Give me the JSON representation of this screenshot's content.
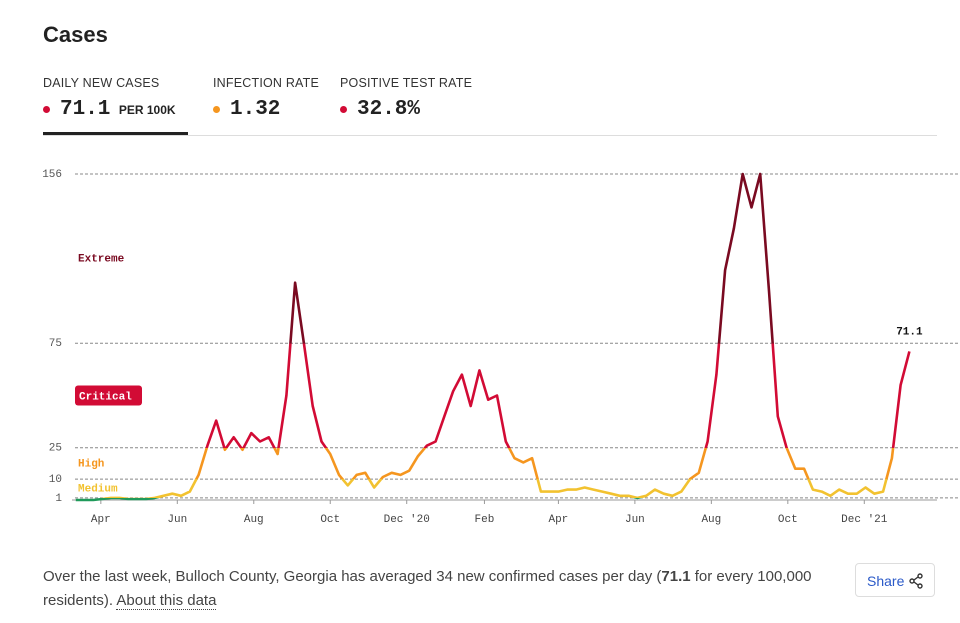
{
  "header": {
    "title": "Cases"
  },
  "tabs": [
    {
      "label": "DAILY NEW CASES",
      "value": "71.1",
      "unit": "PER 100K",
      "color": "#d20b35"
    },
    {
      "label": "INFECTION RATE",
      "value": "1.32",
      "color": "#f5961f"
    },
    {
      "label": "POSITIVE TEST RATE",
      "value": "32.8%",
      "color": "#d20b35"
    }
  ],
  "chart_data": {
    "type": "line",
    "x": [
      "2020-03-12",
      "2020-03-19",
      "2020-03-26",
      "2020-04-02",
      "2020-04-09",
      "2020-04-16",
      "2020-04-23",
      "2020-04-30",
      "2020-05-07",
      "2020-05-14",
      "2020-05-21",
      "2020-05-28",
      "2020-06-04",
      "2020-06-11",
      "2020-06-18",
      "2020-06-25",
      "2020-07-02",
      "2020-07-09",
      "2020-07-16",
      "2020-07-23",
      "2020-07-30",
      "2020-08-06",
      "2020-08-13",
      "2020-08-20",
      "2020-08-27",
      "2020-09-03",
      "2020-09-10",
      "2020-09-17",
      "2020-09-24",
      "2020-10-01",
      "2020-10-08",
      "2020-10-15",
      "2020-10-22",
      "2020-10-29",
      "2020-11-05",
      "2020-11-12",
      "2020-11-19",
      "2020-11-26",
      "2020-12-03",
      "2020-12-10",
      "2020-12-17",
      "2020-12-24",
      "2020-12-31",
      "2021-01-07",
      "2021-01-14",
      "2021-01-21",
      "2021-01-28",
      "2021-02-04",
      "2021-02-11",
      "2021-02-18",
      "2021-02-25",
      "2021-03-04",
      "2021-03-11",
      "2021-03-18",
      "2021-03-25",
      "2021-04-01",
      "2021-04-08",
      "2021-04-15",
      "2021-04-22",
      "2021-04-29",
      "2021-05-06",
      "2021-05-13",
      "2021-05-20",
      "2021-05-27",
      "2021-06-03",
      "2021-06-10",
      "2021-06-17",
      "2021-06-24",
      "2021-07-01",
      "2021-07-08",
      "2021-07-15",
      "2021-07-22",
      "2021-07-29",
      "2021-08-05",
      "2021-08-12",
      "2021-08-19",
      "2021-08-26",
      "2021-09-02",
      "2021-09-09",
      "2021-09-16",
      "2021-09-23",
      "2021-09-30",
      "2021-10-07",
      "2021-10-14",
      "2021-10-21",
      "2021-10-28",
      "2021-11-04",
      "2021-11-11",
      "2021-11-18",
      "2021-11-25",
      "2021-12-02",
      "2021-12-09",
      "2021-12-16",
      "2021-12-23",
      "2021-12-30",
      "2022-01-06"
    ],
    "series": [
      {
        "name": "Daily new cases per 100K",
        "values": [
          0,
          0,
          0,
          0.5,
          1,
          1,
          0.5,
          0.5,
          0.5,
          1,
          2,
          3,
          2,
          4,
          12,
          26,
          38,
          24,
          30,
          24,
          32,
          28,
          30,
          22,
          50,
          104,
          75,
          45,
          28,
          22,
          12,
          7,
          12,
          13,
          6,
          11,
          13,
          12,
          14,
          21,
          26,
          28,
          40,
          52,
          60,
          45,
          62,
          48,
          50,
          28,
          20,
          18,
          20,
          4,
          4,
          4,
          5,
          5,
          6,
          5,
          4,
          3,
          2,
          2,
          1,
          2,
          5,
          3,
          2,
          4,
          10,
          13,
          28,
          60,
          110,
          130,
          156,
          140,
          156,
          100,
          40,
          25,
          15,
          15,
          5,
          4,
          2,
          5,
          3,
          3,
          6,
          3,
          4,
          20,
          55,
          71.1
        ]
      }
    ],
    "xlim": [
      "2020-03-09",
      "2022-01-28"
    ],
    "xticks": [
      {
        "value": "2020-04-01",
        "label": "Apr"
      },
      {
        "value": "2020-06-01",
        "label": "Jun"
      },
      {
        "value": "2020-08-01",
        "label": "Aug"
      },
      {
        "value": "2020-10-01",
        "label": "Oct"
      },
      {
        "value": "2020-12-01",
        "label": "Dec '20"
      },
      {
        "value": "2021-02-01",
        "label": "Feb"
      },
      {
        "value": "2021-04-01",
        "label": "Apr"
      },
      {
        "value": "2021-06-01",
        "label": "Jun"
      },
      {
        "value": "2021-08-01",
        "label": "Aug"
      },
      {
        "value": "2021-10-01",
        "label": "Oct"
      },
      {
        "value": "2021-12-01",
        "label": "Dec '21"
      }
    ],
    "ylim": [
      0,
      156
    ],
    "yticks": [
      1,
      10,
      25,
      75,
      156
    ],
    "grid": true,
    "low_color": "#1f9a5a",
    "levels": [
      {
        "name": "Medium",
        "from": 1,
        "to": 10,
        "color": "#f2c230"
      },
      {
        "name": "High",
        "from": 10,
        "to": 25,
        "color": "#f5961f"
      },
      {
        "name": "Critical",
        "from": 25,
        "to": 75,
        "color": "#d20b35"
      },
      {
        "name": "Extreme",
        "from": 75,
        "to": 156,
        "color": "#7a0a21"
      }
    ]
  },
  "footer": {
    "text": "Over the last week, Bulloch County, Georgia has averaged 34 new confirmed cases per day (",
    "bold": "71.1",
    "text2": " for every 100,000 residents). ",
    "link": "About this data",
    "share": "Share"
  }
}
